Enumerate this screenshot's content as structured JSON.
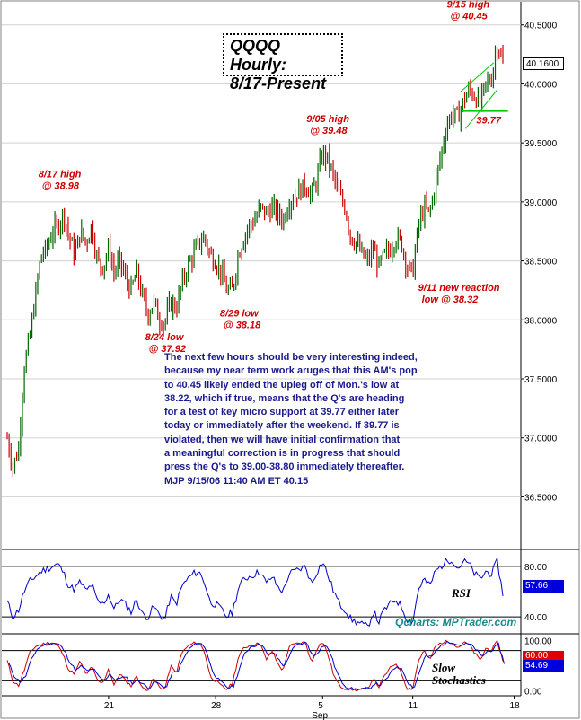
{
  "chart_data": [
    {
      "type": "candlestick",
      "title": "QQQQ Hourly:",
      "subtitle": "8/17-Present",
      "ylim": [
        36.1,
        40.65
      ],
      "y_ticks": [
        "40.5000",
        "40.0000",
        "39.5000",
        "39.0000",
        "38.5000",
        "38.0000",
        "37.5000",
        "37.0000",
        "36.5000"
      ],
      "y_tick_values": [
        40.5,
        40.0,
        39.5,
        39.0,
        38.5,
        38.0,
        37.5,
        37.0,
        36.5
      ],
      "last_price_label": "40.1600",
      "last_price": 40.16,
      "key_points": [
        {
          "label": "8/17 high",
          "value_label": "@ 38.98",
          "x": 10,
          "y": 38.98
        },
        {
          "label": "8/24 low",
          "value_label": "@ 37.92",
          "x": 28,
          "y": 37.92
        },
        {
          "label": "8/29 low",
          "value_label": "@ 38.18",
          "x": 40,
          "y": 38.18
        },
        {
          "label": "9/05 high",
          "value_label": "@ 39.48",
          "x": 56,
          "y": 39.48
        },
        {
          "label": "9/11 new reaction",
          "value_label": "low @ 38.32",
          "x": 72,
          "y": 38.32
        },
        {
          "label": "9/15 high",
          "value_label": "@ 40.45",
          "x": 86,
          "y": 40.45
        }
      ],
      "support_level": {
        "label": "39.77",
        "value": 39.77
      },
      "path": [
        [
          0,
          37.0
        ],
        [
          1,
          36.75
        ],
        [
          2,
          36.9
        ],
        [
          3,
          37.6
        ],
        [
          4,
          37.85
        ],
        [
          5,
          38.2
        ],
        [
          6,
          38.55
        ],
        [
          7,
          38.6
        ],
        [
          8,
          38.75
        ],
        [
          9,
          38.8
        ],
        [
          10,
          38.9
        ],
        [
          11,
          38.7
        ],
        [
          12,
          38.55
        ],
        [
          13,
          38.75
        ],
        [
          14,
          38.65
        ],
        [
          15,
          38.8
        ],
        [
          16,
          38.5
        ],
        [
          17,
          38.45
        ],
        [
          18,
          38.6
        ],
        [
          19,
          38.4
        ],
        [
          20,
          38.5
        ],
        [
          21,
          38.35
        ],
        [
          22,
          38.25
        ],
        [
          23,
          38.4
        ],
        [
          24,
          38.2
        ],
        [
          25,
          38.05
        ],
        [
          26,
          38.15
        ],
        [
          27,
          38.0
        ],
        [
          28,
          37.98
        ],
        [
          29,
          38.15
        ],
        [
          30,
          38.1
        ],
        [
          31,
          38.3
        ],
        [
          32,
          38.45
        ],
        [
          33,
          38.55
        ],
        [
          34,
          38.65
        ],
        [
          35,
          38.7
        ],
        [
          36,
          38.55
        ],
        [
          37,
          38.5
        ],
        [
          38,
          38.4
        ],
        [
          39,
          38.25
        ],
        [
          40,
          38.25
        ],
        [
          41,
          38.55
        ],
        [
          42,
          38.7
        ],
        [
          43,
          38.8
        ],
        [
          44,
          38.85
        ],
        [
          45,
          38.95
        ],
        [
          46,
          38.9
        ],
        [
          47,
          38.95
        ],
        [
          48,
          38.9
        ],
        [
          49,
          38.85
        ],
        [
          50,
          39.0
        ],
        [
          51,
          39.05
        ],
        [
          52,
          39.1
        ],
        [
          53,
          39.15
        ],
        [
          54,
          39.05
        ],
        [
          55,
          39.2
        ],
        [
          56,
          39.42
        ],
        [
          57,
          39.35
        ],
        [
          58,
          39.2
        ],
        [
          59,
          39.05
        ],
        [
          60,
          38.95
        ],
        [
          61,
          38.7
        ],
        [
          62,
          38.65
        ],
        [
          63,
          38.55
        ],
        [
          64,
          38.5
        ],
        [
          65,
          38.6
        ],
        [
          66,
          38.45
        ],
        [
          67,
          38.55
        ],
        [
          68,
          38.6
        ],
        [
          69,
          38.7
        ],
        [
          70,
          38.65
        ],
        [
          71,
          38.45
        ],
        [
          72,
          38.4
        ],
        [
          73,
          38.8
        ],
        [
          74,
          38.95
        ],
        [
          75,
          38.9
        ],
        [
          76,
          39.15
        ],
        [
          77,
          39.4
        ],
        [
          78,
          39.65
        ],
        [
          79,
          39.75
        ],
        [
          80,
          39.72
        ],
        [
          81,
          39.85
        ],
        [
          82,
          39.95
        ],
        [
          83,
          39.9
        ],
        [
          84,
          39.85
        ],
        [
          85,
          40.0
        ],
        [
          86,
          40.05
        ],
        [
          87,
          40.35
        ],
        [
          88,
          40.16
        ]
      ],
      "x_ticks": [
        "21",
        "28",
        "5",
        "11",
        "18"
      ],
      "x_tick_positions": [
        18,
        37,
        56,
        72,
        90
      ],
      "x_axis_label": "Sep",
      "annotation_text": "The next few hours should be very interesting indeed,\nbecause my near term work aruges that this AM's pop\nto 40.45 likely ended the upleg off of Mon.'s low at\n38.22, which if true, means that the Q's are heading\nfor a test of key micro support at 39.77 either later\ntoday or immediately after the weekend. If 39.77 is\nviolated, then we will have initial confirmation that\na meaningful correction is in progress that should\npress the Q's to 39.00-38.80 immediately thereafter.\nMJP 9/15/06 11:40 AM ET  40.15",
      "credit": "Qcharts: MPTrader.com"
    },
    {
      "type": "line",
      "name": "RSI",
      "label": "RSI",
      "ylim": [
        28,
        92
      ],
      "y_ticks": [
        "80.00",
        "40.00"
      ],
      "y_tick_values": [
        80,
        40
      ],
      "last_value_label": "57.66",
      "last_value": 57.66,
      "values": [
        52,
        40,
        45,
        60,
        68,
        72,
        76,
        78,
        80,
        82,
        75,
        64,
        62,
        68,
        60,
        66,
        52,
        50,
        58,
        46,
        54,
        50,
        44,
        54,
        42,
        40,
        48,
        42,
        38,
        56,
        50,
        64,
        70,
        74,
        76,
        68,
        52,
        50,
        46,
        40,
        44,
        62,
        70,
        72,
        74,
        76,
        66,
        72,
        64,
        60,
        74,
        76,
        78,
        80,
        66,
        76,
        84,
        72,
        60,
        50,
        46,
        38,
        36,
        34,
        32,
        44,
        36,
        46,
        50,
        54,
        48,
        38,
        36,
        62,
        70,
        64,
        76,
        80,
        84,
        86,
        78,
        84,
        82,
        74,
        70,
        76,
        74,
        84,
        57.66
      ]
    },
    {
      "type": "line",
      "name": "Slow Stochastics",
      "label": "Slow\nStochastics",
      "ylim": [
        -6,
        106
      ],
      "y_ticks": [
        "100.00",
        "0.00"
      ],
      "y_tick_values": [
        100,
        0
      ],
      "last_value_labels": [
        "60.00",
        "54.69"
      ],
      "reference_lines": [
        80,
        20
      ],
      "series": [
        {
          "name": "%K",
          "color": "#cc0000",
          "values": [
            60,
            20,
            10,
            40,
            75,
            88,
            92,
            94,
            96,
            90,
            70,
            40,
            35,
            60,
            30,
            50,
            20,
            15,
            45,
            10,
            35,
            20,
            10,
            30,
            5,
            3,
            25,
            8,
            3,
            50,
            35,
            75,
            88,
            94,
            96,
            80,
            30,
            20,
            10,
            3,
            15,
            65,
            85,
            90,
            92,
            94,
            60,
            80,
            55,
            40,
            88,
            92,
            95,
            96,
            55,
            85,
            98,
            70,
            30,
            10,
            5,
            3,
            2,
            3,
            5,
            25,
            8,
            30,
            45,
            55,
            35,
            5,
            5,
            60,
            80,
            60,
            88,
            95,
            98,
            97,
            85,
            96,
            92,
            75,
            60,
            85,
            80,
            98,
            60
          ]
        },
        {
          "name": "%D",
          "color": "#0000cc",
          "values": [
            55,
            30,
            18,
            28,
            60,
            82,
            90,
            93,
            95,
            92,
            78,
            55,
            40,
            50,
            38,
            45,
            28,
            20,
            35,
            20,
            28,
            25,
            15,
            22,
            12,
            6,
            18,
            12,
            6,
            35,
            38,
            62,
            82,
            92,
            95,
            85,
            45,
            25,
            15,
            6,
            10,
            45,
            75,
            88,
            91,
            93,
            70,
            76,
            62,
            48,
            75,
            90,
            94,
            95,
            68,
            78,
            92,
            80,
            45,
            20,
            8,
            4,
            3,
            3,
            4,
            15,
            12,
            22,
            38,
            50,
            40,
            15,
            6,
            40,
            70,
            66,
            80,
            92,
            96,
            97,
            90,
            93,
            92,
            82,
            68,
            78,
            82,
            92,
            54.69
          ]
        }
      ]
    }
  ]
}
